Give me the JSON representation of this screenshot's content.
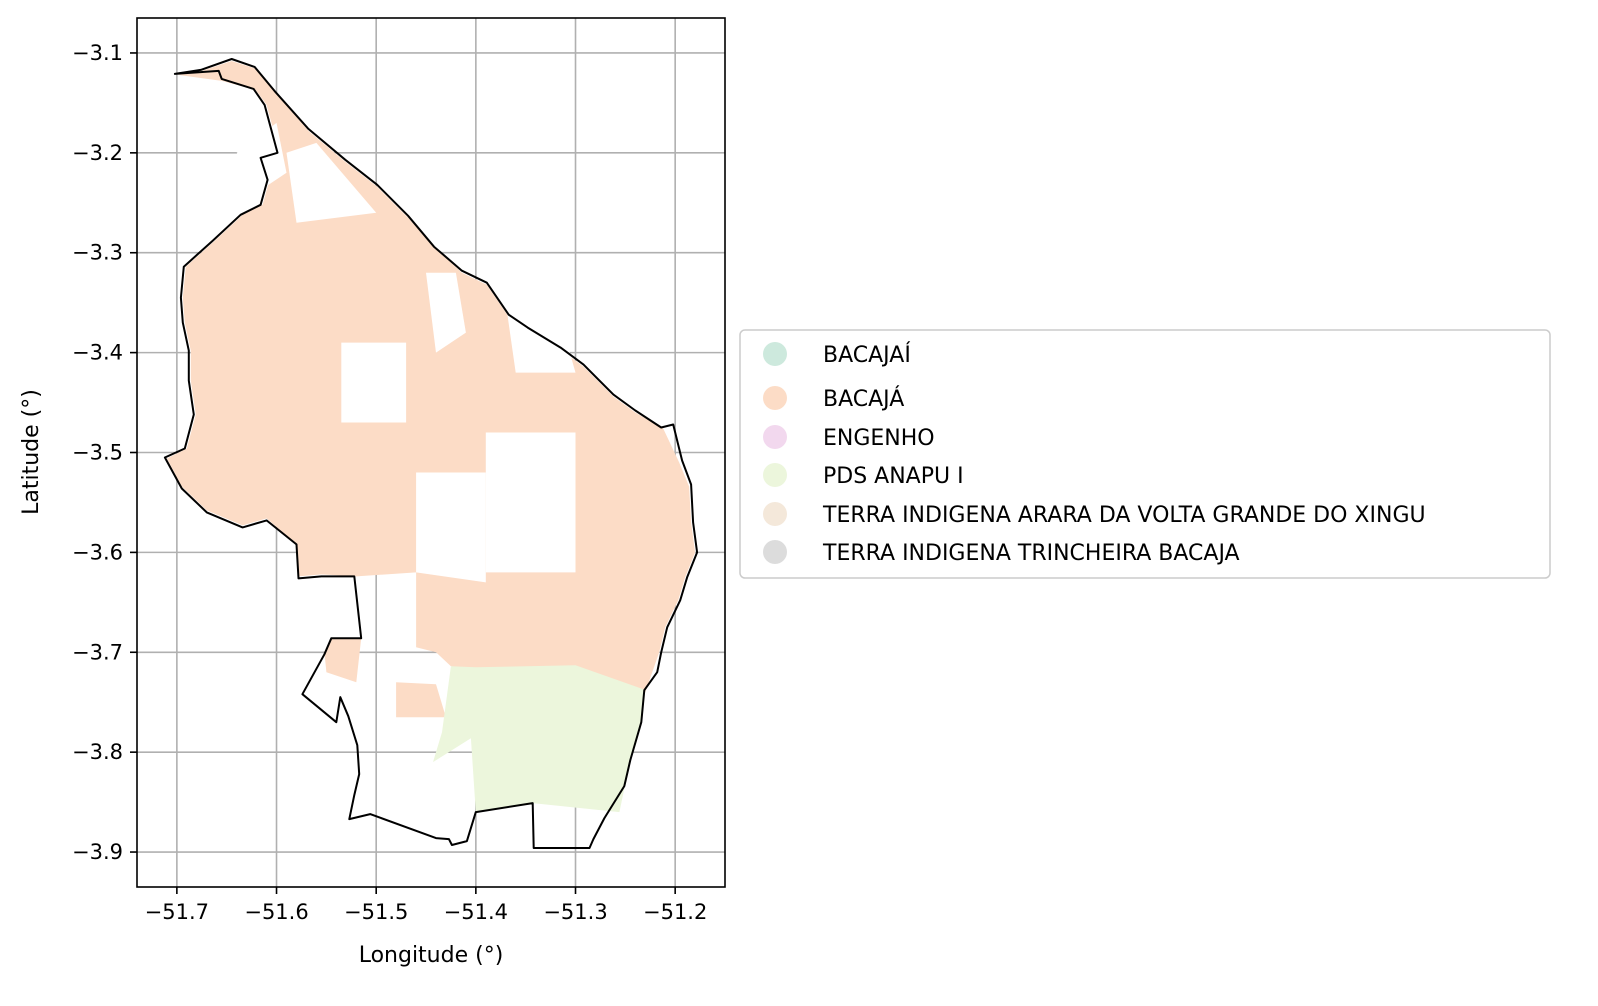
{
  "chart_data": {
    "type": "map",
    "xlabel": "Longitude (°)",
    "ylabel": "Latitude (°)",
    "xlim": [
      -51.74,
      -51.15
    ],
    "ylim": [
      -3.935,
      -3.065
    ],
    "x_ticks": [
      -51.7,
      -51.6,
      -51.5,
      -51.4,
      -51.3,
      -51.2
    ],
    "x_tick_labels": [
      "−51.7",
      "−51.6",
      "−51.5",
      "−51.4",
      "−51.3",
      "−51.2"
    ],
    "y_ticks": [
      -3.1,
      -3.2,
      -3.3,
      -3.4,
      -3.5,
      -3.6,
      -3.7,
      -3.8,
      -3.9
    ],
    "y_tick_labels": [
      "−3.1",
      "−3.2",
      "−3.3",
      "−3.4",
      "−3.5",
      "−3.6",
      "−3.7",
      "−3.8",
      "−3.9"
    ],
    "grid": true,
    "legend_placement": "center-right, outside plot",
    "legend": [
      {
        "label": "BACAJAÍ",
        "color": "#cde9dd"
      },
      {
        "label": "BACAJÁ",
        "color": "#fcdcc6"
      },
      {
        "label": "ENGENHO",
        "color": "#f2d8ee"
      },
      {
        "label": "PDS ANAPU I",
        "color": "#ecf6dc"
      },
      {
        "label": "TERRA INDIGENA ARARA DA VOLTA GRANDE DO XINGU",
        "color": "#f4e8da"
      },
      {
        "label": "TERRA INDIGENA TRINCHEIRA BACAJA",
        "color": "#dcdcdc"
      }
    ],
    "boundary": [
      [
        -51.702,
        -3.121
      ],
      [
        -51.676,
        -3.117
      ],
      [
        -51.645,
        -3.106
      ],
      [
        -51.622,
        -3.114
      ],
      [
        -51.602,
        -3.138
      ],
      [
        -51.568,
        -3.176
      ],
      [
        -51.531,
        -3.207
      ],
      [
        -51.499,
        -3.232
      ],
      [
        -51.468,
        -3.263
      ],
      [
        -51.442,
        -3.294
      ],
      [
        -51.414,
        -3.318
      ],
      [
        -51.389,
        -3.33
      ],
      [
        -51.367,
        -3.362
      ],
      [
        -51.348,
        -3.375
      ],
      [
        -51.315,
        -3.395
      ],
      [
        -51.292,
        -3.412
      ],
      [
        -51.262,
        -3.442
      ],
      [
        -51.24,
        -3.458
      ],
      [
        -51.214,
        -3.475
      ],
      [
        -51.202,
        -3.472
      ],
      [
        -51.193,
        -3.508
      ],
      [
        -51.184,
        -3.532
      ],
      [
        -51.182,
        -3.57
      ],
      [
        -51.178,
        -3.6
      ],
      [
        -51.188,
        -3.625
      ],
      [
        -51.195,
        -3.648
      ],
      [
        -51.208,
        -3.675
      ],
      [
        -51.214,
        -3.7
      ],
      [
        -51.218,
        -3.72
      ],
      [
        -51.231,
        -3.738
      ],
      [
        -51.234,
        -3.77
      ],
      [
        -51.245,
        -3.808
      ],
      [
        -51.251,
        -3.834
      ],
      [
        -51.271,
        -3.866
      ],
      [
        -51.282,
        -3.887
      ],
      [
        -51.286,
        -3.896
      ],
      [
        -51.342,
        -3.896
      ],
      [
        -51.343,
        -3.851
      ],
      [
        -51.4,
        -3.86
      ],
      [
        -51.409,
        -3.889
      ],
      [
        -51.424,
        -3.893
      ],
      [
        -51.427,
        -3.887
      ],
      [
        -51.44,
        -3.886
      ],
      [
        -51.495,
        -3.866
      ],
      [
        -51.506,
        -3.862
      ],
      [
        -51.527,
        -3.867
      ],
      [
        -51.522,
        -3.843
      ],
      [
        -51.517,
        -3.822
      ],
      [
        -51.519,
        -3.793
      ],
      [
        -51.528,
        -3.764
      ],
      [
        -51.536,
        -3.745
      ],
      [
        -51.54,
        -3.77
      ],
      [
        -51.574,
        -3.742
      ],
      [
        -51.552,
        -3.702
      ],
      [
        -51.545,
        -3.686
      ],
      [
        -51.515,
        -3.686
      ],
      [
        -51.522,
        -3.624
      ],
      [
        -51.555,
        -3.624
      ],
      [
        -51.578,
        -3.626
      ],
      [
        -51.58,
        -3.592
      ],
      [
        -51.61,
        -3.568
      ],
      [
        -51.634,
        -3.575
      ],
      [
        -51.67,
        -3.56
      ],
      [
        -51.695,
        -3.536
      ],
      [
        -51.712,
        -3.505
      ],
      [
        -51.692,
        -3.496
      ],
      [
        -51.683,
        -3.462
      ],
      [
        -51.688,
        -3.428
      ],
      [
        -51.688,
        -3.398
      ],
      [
        -51.694,
        -3.37
      ],
      [
        -51.696,
        -3.345
      ],
      [
        -51.693,
        -3.314
      ],
      [
        -51.664,
        -3.288
      ],
      [
        -51.636,
        -3.262
      ],
      [
        -51.616,
        -3.252
      ],
      [
        -51.609,
        -3.227
      ],
      [
        -51.616,
        -3.205
      ],
      [
        -51.599,
        -3.2
      ],
      [
        -51.612,
        -3.152
      ],
      [
        -51.623,
        -3.136
      ],
      [
        -51.655,
        -3.126
      ],
      [
        -51.658,
        -3.118
      ],
      [
        -51.702,
        -3.121
      ]
    ],
    "regions": [
      {
        "name": "BACAJÁ",
        "color": "#fcdcc6",
        "polygon": [
          [
            -51.699,
            -3.122
          ],
          [
            -51.675,
            -3.118
          ],
          [
            -51.645,
            -3.108
          ],
          [
            -51.62,
            -3.116
          ],
          [
            -51.6,
            -3.14
          ],
          [
            -51.568,
            -3.178
          ],
          [
            -51.531,
            -3.209
          ],
          [
            -51.499,
            -3.234
          ],
          [
            -51.468,
            -3.265
          ],
          [
            -51.44,
            -3.296
          ],
          [
            -51.414,
            -3.32
          ],
          [
            -51.389,
            -3.332
          ],
          [
            -51.367,
            -3.364
          ],
          [
            -51.348,
            -3.377
          ],
          [
            -51.315,
            -3.397
          ],
          [
            -51.292,
            -3.414
          ],
          [
            -51.262,
            -3.444
          ],
          [
            -51.24,
            -3.46
          ],
          [
            -51.212,
            -3.476
          ],
          [
            -51.196,
            -3.51
          ],
          [
            -51.186,
            -3.534
          ],
          [
            -51.184,
            -3.57
          ],
          [
            -51.18,
            -3.6
          ],
          [
            -51.19,
            -3.625
          ],
          [
            -51.197,
            -3.648
          ],
          [
            -51.21,
            -3.675
          ],
          [
            -51.216,
            -3.7
          ],
          [
            -51.23,
            -3.74
          ],
          [
            -51.425,
            -3.714
          ],
          [
            -51.44,
            -3.7
          ],
          [
            -51.46,
            -3.695
          ],
          [
            -51.46,
            -3.62
          ],
          [
            -51.52,
            -3.624
          ],
          [
            -51.555,
            -3.622
          ],
          [
            -51.578,
            -3.624
          ],
          [
            -51.58,
            -3.592
          ],
          [
            -51.61,
            -3.566
          ],
          [
            -51.634,
            -3.573
          ],
          [
            -51.67,
            -3.558
          ],
          [
            -51.695,
            -3.534
          ],
          [
            -51.71,
            -3.506
          ],
          [
            -51.69,
            -3.496
          ],
          [
            -51.681,
            -3.462
          ],
          [
            -51.686,
            -3.428
          ],
          [
            -51.686,
            -3.398
          ],
          [
            -51.692,
            -3.37
          ],
          [
            -51.694,
            -3.345
          ],
          [
            -51.691,
            -3.314
          ],
          [
            -51.662,
            -3.288
          ],
          [
            -51.634,
            -3.262
          ],
          [
            -51.614,
            -3.252
          ],
          [
            -51.607,
            -3.227
          ],
          [
            -51.614,
            -3.205
          ],
          [
            -51.597,
            -3.2
          ],
          [
            -51.61,
            -3.152
          ],
          [
            -51.621,
            -3.137
          ],
          [
            -51.655,
            -3.128
          ],
          [
            -51.699,
            -3.122
          ]
        ]
      },
      {
        "name": "BACAJÁ",
        "color": "#fcdcc6",
        "polygon": [
          [
            -51.552,
            -3.7
          ],
          [
            -51.545,
            -3.686
          ],
          [
            -51.515,
            -3.686
          ],
          [
            -51.52,
            -3.73
          ],
          [
            -51.55,
            -3.72
          ]
        ]
      },
      {
        "name": "BACAJÁ",
        "color": "#fcdcc6",
        "polygon": [
          [
            -51.48,
            -3.73
          ],
          [
            -51.44,
            -3.732
          ],
          [
            -51.43,
            -3.765
          ],
          [
            -51.48,
            -3.765
          ]
        ]
      },
      {
        "name": "PDS ANAPU I",
        "color": "#ecf6dc",
        "polygon": [
          [
            -51.425,
            -3.714
          ],
          [
            -51.4,
            -3.715
          ],
          [
            -51.3,
            -3.713
          ],
          [
            -51.232,
            -3.737
          ],
          [
            -51.234,
            -3.77
          ],
          [
            -51.245,
            -3.808
          ],
          [
            -51.256,
            -3.86
          ],
          [
            -51.343,
            -3.851
          ],
          [
            -51.4,
            -3.86
          ],
          [
            -51.405,
            -3.786
          ],
          [
            -51.443,
            -3.81
          ],
          [
            -51.434,
            -3.78
          ]
        ]
      }
    ],
    "gaps": [
      {
        "polygon": [
          [
            -51.59,
            -3.2
          ],
          [
            -51.56,
            -3.19
          ],
          [
            -51.5,
            -3.26
          ],
          [
            -51.58,
            -3.27
          ]
        ]
      },
      {
        "polygon": [
          [
            -51.535,
            -3.39
          ],
          [
            -51.47,
            -3.39
          ],
          [
            -51.47,
            -3.47
          ],
          [
            -51.535,
            -3.47
          ]
        ]
      },
      {
        "polygon": [
          [
            -51.46,
            -3.52
          ],
          [
            -51.39,
            -3.52
          ],
          [
            -51.39,
            -3.63
          ],
          [
            -51.46,
            -3.62
          ]
        ]
      },
      {
        "polygon": [
          [
            -51.39,
            -3.48
          ],
          [
            -51.3,
            -3.48
          ],
          [
            -51.3,
            -3.62
          ],
          [
            -51.39,
            -3.62
          ]
        ]
      },
      {
        "polygon": [
          [
            -51.37,
            -3.35
          ],
          [
            -51.32,
            -3.35
          ],
          [
            -51.3,
            -3.42
          ],
          [
            -51.36,
            -3.42
          ]
        ]
      },
      {
        "polygon": [
          [
            -51.64,
            -3.2
          ],
          [
            -51.6,
            -3.17
          ],
          [
            -51.59,
            -3.22
          ],
          [
            -51.62,
            -3.24
          ]
        ]
      },
      {
        "polygon": [
          [
            -51.45,
            -3.32
          ],
          [
            -51.42,
            -3.32
          ],
          [
            -51.41,
            -3.38
          ],
          [
            -51.44,
            -3.4
          ]
        ]
      }
    ]
  }
}
